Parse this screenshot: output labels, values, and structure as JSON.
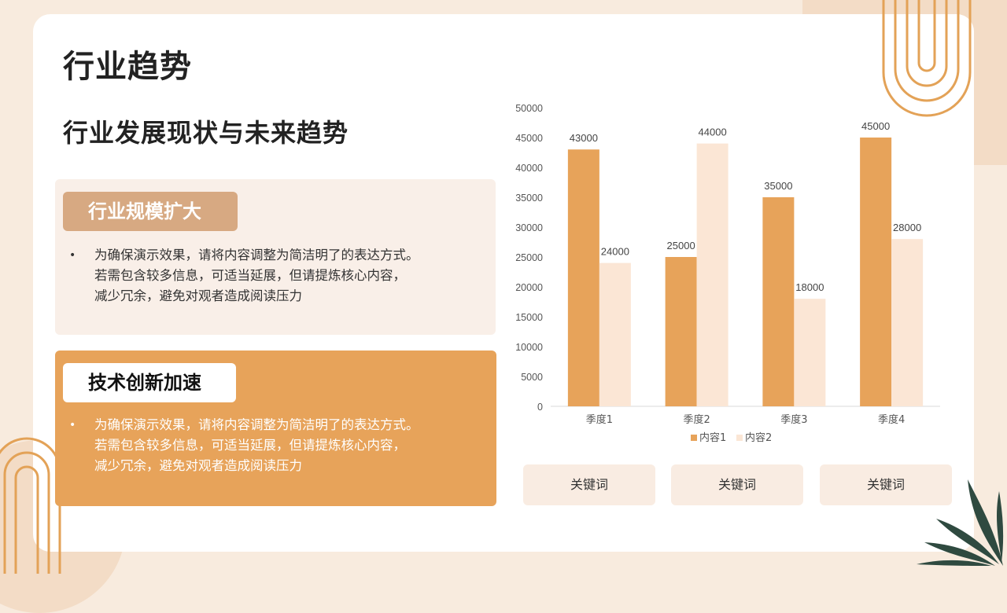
{
  "slide": {
    "title": "行业趋势",
    "subtitle": "行业发展现状与未来趋势"
  },
  "sections": [
    {
      "heading": "行业规模扩大",
      "bullet": "•",
      "lines": [
        "为确保演示效果，请将内容调整为简洁明了的表达方式。",
        "若需包含较多信息，可适当延展，但请提炼核心内容，",
        "减少冗余，避免对观者造成阅读压力"
      ]
    },
    {
      "heading": "技术创新加速",
      "bullet": "•",
      "lines": [
        "为确保演示效果，请将内容调整为简洁明了的表达方式。",
        "若需包含较多信息，可适当延展，但请提炼核心内容，",
        "减少冗余，避免对观者造成阅读压力"
      ]
    }
  ],
  "keywords": [
    "关键词",
    "关键词",
    "关键词"
  ],
  "colors": {
    "accent": "#e7a35a",
    "light": "#f9ece2",
    "pill": "#d7a982",
    "leaf": "#2f4a40"
  },
  "chart_data": {
    "type": "bar",
    "categories": [
      "季度1",
      "季度2",
      "季度3",
      "季度4"
    ],
    "series": [
      {
        "name": "内容1",
        "values": [
          43000,
          25000,
          35000,
          45000
        ],
        "color": "#e7a35a"
      },
      {
        "name": "内容2",
        "values": [
          24000,
          44000,
          18000,
          28000
        ],
        "color": "#fbe6d5"
      }
    ],
    "yticks": [
      0,
      5000,
      10000,
      15000,
      20000,
      25000,
      30000,
      35000,
      40000,
      45000,
      50000
    ],
    "ylim": [
      0,
      50000
    ],
    "data_labels": true,
    "grid": false,
    "legend": "bottom"
  }
}
